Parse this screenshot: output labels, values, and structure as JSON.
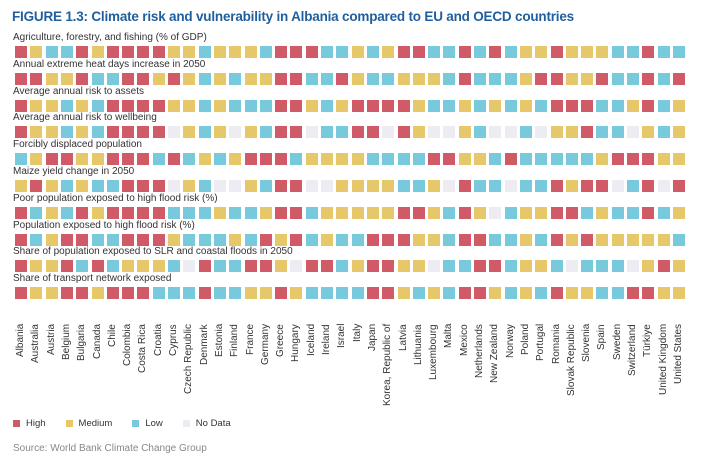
{
  "title": "FIGURE 1.3: Climate risk and vulnerability in Albania compared to EU and OECD countries",
  "source": "Source: World Bank Climate Change Group",
  "colors": {
    "H": "#d05a68",
    "M": "#e6c76a",
    "L": "#79c9dc",
    "N": "#ececf2"
  },
  "legend": [
    {
      "key": "H",
      "label": "High"
    },
    {
      "key": "M",
      "label": "Medium"
    },
    {
      "key": "L",
      "label": "Low"
    },
    {
      "key": "N",
      "label": "No Data"
    }
  ],
  "chart_data": {
    "type": "heatmap",
    "title": "FIGURE 1.3: Climate risk and vulnerability in Albania compared to EU and OECD countries",
    "categories": [
      "Albania",
      "Australia",
      "Austria",
      "Belgium",
      "Bulgaria",
      "Canada",
      "Chile",
      "Colombia",
      "Costa Rica",
      "Croatia",
      "Cyprus",
      "Czech Republic",
      "Denmark",
      "Estonia",
      "Finland",
      "France",
      "Germany",
      "Greece",
      "Hungary",
      "Iceland",
      "Ireland",
      "Israel",
      "Italy",
      "Japan",
      "Korea, Republic of",
      "Latvia",
      "Lithuania",
      "Luxembourg",
      "Malta",
      "Mexico",
      "Netherlands",
      "New Zealand",
      "Norway",
      "Poland",
      "Portugal",
      "Romania",
      "Slovak Republic",
      "Slovenia",
      "Spain",
      "Sweden",
      "Switzerland",
      "Türkiye",
      "United Kingdom",
      "United States"
    ],
    "legend_placement": "bottom-left",
    "series": [
      {
        "name": "Agriculture, forestry, and fishing (% of GDP)",
        "values": "RYBBRYRRRRYYBYYYBRRRBBYBYRRBBRBRBYYRYYYBBRBB"
      },
      {
        "name": "Annual extreme heat days increase in 2050",
        "values": "RRYYRBBRRYRYBYBYYRRBBRYBBYYYBRBBBYRRYYRBBRBR"
      },
      {
        "name": "Average annual risk to assets",
        "values": "RYYBYBRRRRYYBYBBBRRYBYRRRRYBBYBYBYBRRRBBYRBY"
      },
      {
        "name": "Average annual risk to wellbeing",
        "values": "RYYBYBRRRRNYBYNYBRRNBBRRNRYNNYBNNBNYYRBBNYBY"
      },
      {
        "name": "Forcibly displaced population",
        "values": "BYRRYYRRRBRBYBYRRRBYYYYBBBBRRYYBRBBBBBYRRRYY"
      },
      {
        "name": "Maize yield change in 2050",
        "values": "YRYBYBBRRRNYBNNYBRRNNYYYYBBYNRBBNBBRYRRNBRNR"
      },
      {
        "name": "Poor population exposed to high flood risk (%)",
        "values": "RBYBRYRRRRBBBYBBYRRBYYYYYRRYBRYNBYYRRBYBBRBY"
      },
      {
        "name": "Population exposed to high flood risk (%)",
        "values": "RBYRRBBRRRYBBBYBRYRBYBBRRRYYBRRBBYBRYRYYYYYB"
      },
      {
        "name": "Share of population exposed to SLR and coastal floods in 2050",
        "values": "RYYRBRBYYYBNRBBRRYNRRBYRRYYNBBRRBYYBNBBBNYRY"
      },
      {
        "name": "Share of transport network exposed",
        "values": "RYYRRYRRRBBBRBBYYRYBBBBRRYBYBRRYBYBRYYBBRRYY"
      }
    ],
    "value_legend": {
      "R": "High",
      "Y": "Medium",
      "B": "Low",
      "N": "No Data"
    }
  }
}
